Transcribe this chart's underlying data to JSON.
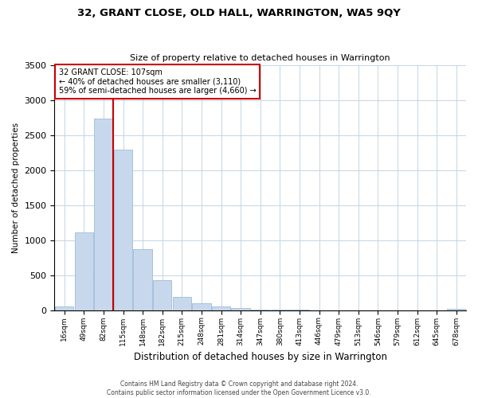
{
  "title": "32, GRANT CLOSE, OLD HALL, WARRINGTON, WA5 9QY",
  "subtitle": "Size of property relative to detached houses in Warrington",
  "xlabel": "Distribution of detached houses by size in Warrington",
  "ylabel": "Number of detached properties",
  "categories": [
    "16sqm",
    "49sqm",
    "82sqm",
    "115sqm",
    "148sqm",
    "182sqm",
    "215sqm",
    "248sqm",
    "281sqm",
    "314sqm",
    "347sqm",
    "380sqm",
    "413sqm",
    "446sqm",
    "479sqm",
    "513sqm",
    "546sqm",
    "579sqm",
    "612sqm",
    "645sqm",
    "678sqm"
  ],
  "values": [
    50,
    1110,
    2730,
    2290,
    870,
    430,
    185,
    100,
    55,
    30,
    10,
    5,
    2,
    0,
    0,
    0,
    0,
    0,
    0,
    0,
    20
  ],
  "bar_color": "#c8d8ec",
  "bar_edge_color": "#9bbcd6",
  "vline_color": "#cc0000",
  "annotation_title": "32 GRANT CLOSE: 107sqm",
  "annotation_line1": "← 40% of detached houses are smaller (3,110)",
  "annotation_line2": "59% of semi-detached houses are larger (4,660) →",
  "annotation_box_color": "#ffffff",
  "annotation_box_edge": "#cc0000",
  "ylim": [
    0,
    3500
  ],
  "yticks": [
    0,
    500,
    1000,
    1500,
    2000,
    2500,
    3000,
    3500
  ],
  "footer1": "Contains HM Land Registry data © Crown copyright and database right 2024.",
  "footer2": "Contains public sector information licensed under the Open Government Licence v3.0.",
  "bg_color": "#ffffff",
  "grid_color": "#c5d5e5"
}
